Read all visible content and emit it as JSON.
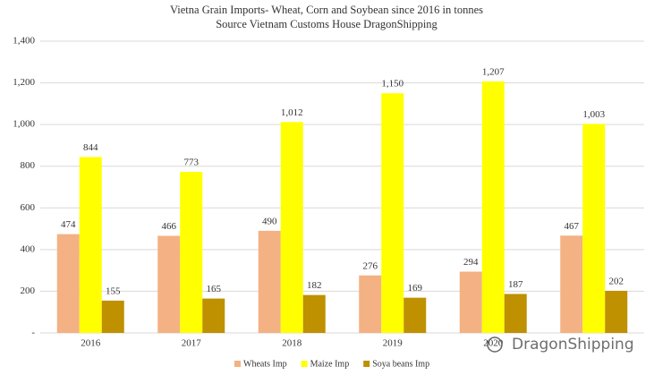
{
  "chart_data": {
    "type": "bar",
    "title": "Vietna Grain Imports- Wheat, Corn and Soybean since 2016 in tonnes",
    "subtitle": "Source Vietnam Customs House DragonShipping",
    "categories": [
      "2016",
      "2017",
      "2018",
      "2019",
      "2020",
      null
    ],
    "series": [
      {
        "name": "Wheats Imp",
        "color": "#f4b183",
        "values": [
          474,
          466,
          490,
          276,
          294,
          467
        ]
      },
      {
        "name": "Maize Imp",
        "color": "#ffff00",
        "values": [
          844,
          773,
          1012,
          1150,
          1207,
          1003
        ],
        "value_labels": [
          "844",
          "773",
          "1,012",
          "1,150",
          "1,207",
          "1,003"
        ]
      },
      {
        "name": "Soya beans Imp",
        "color": "#bf9000",
        "values": [
          155,
          165,
          182,
          169,
          187,
          202
        ]
      }
    ],
    "ylim": [
      0,
      1400
    ],
    "yticks": [
      {
        "value": 0,
        "label": "-"
      },
      200,
      400,
      600,
      800,
      {
        "value": 1000,
        "label": "1,000"
      },
      {
        "value": 1200,
        "label": "1,200"
      },
      {
        "value": 1400,
        "label": "1,400"
      }
    ],
    "grid": true,
    "legend": "bottom",
    "watermark": "DragonShipping"
  }
}
